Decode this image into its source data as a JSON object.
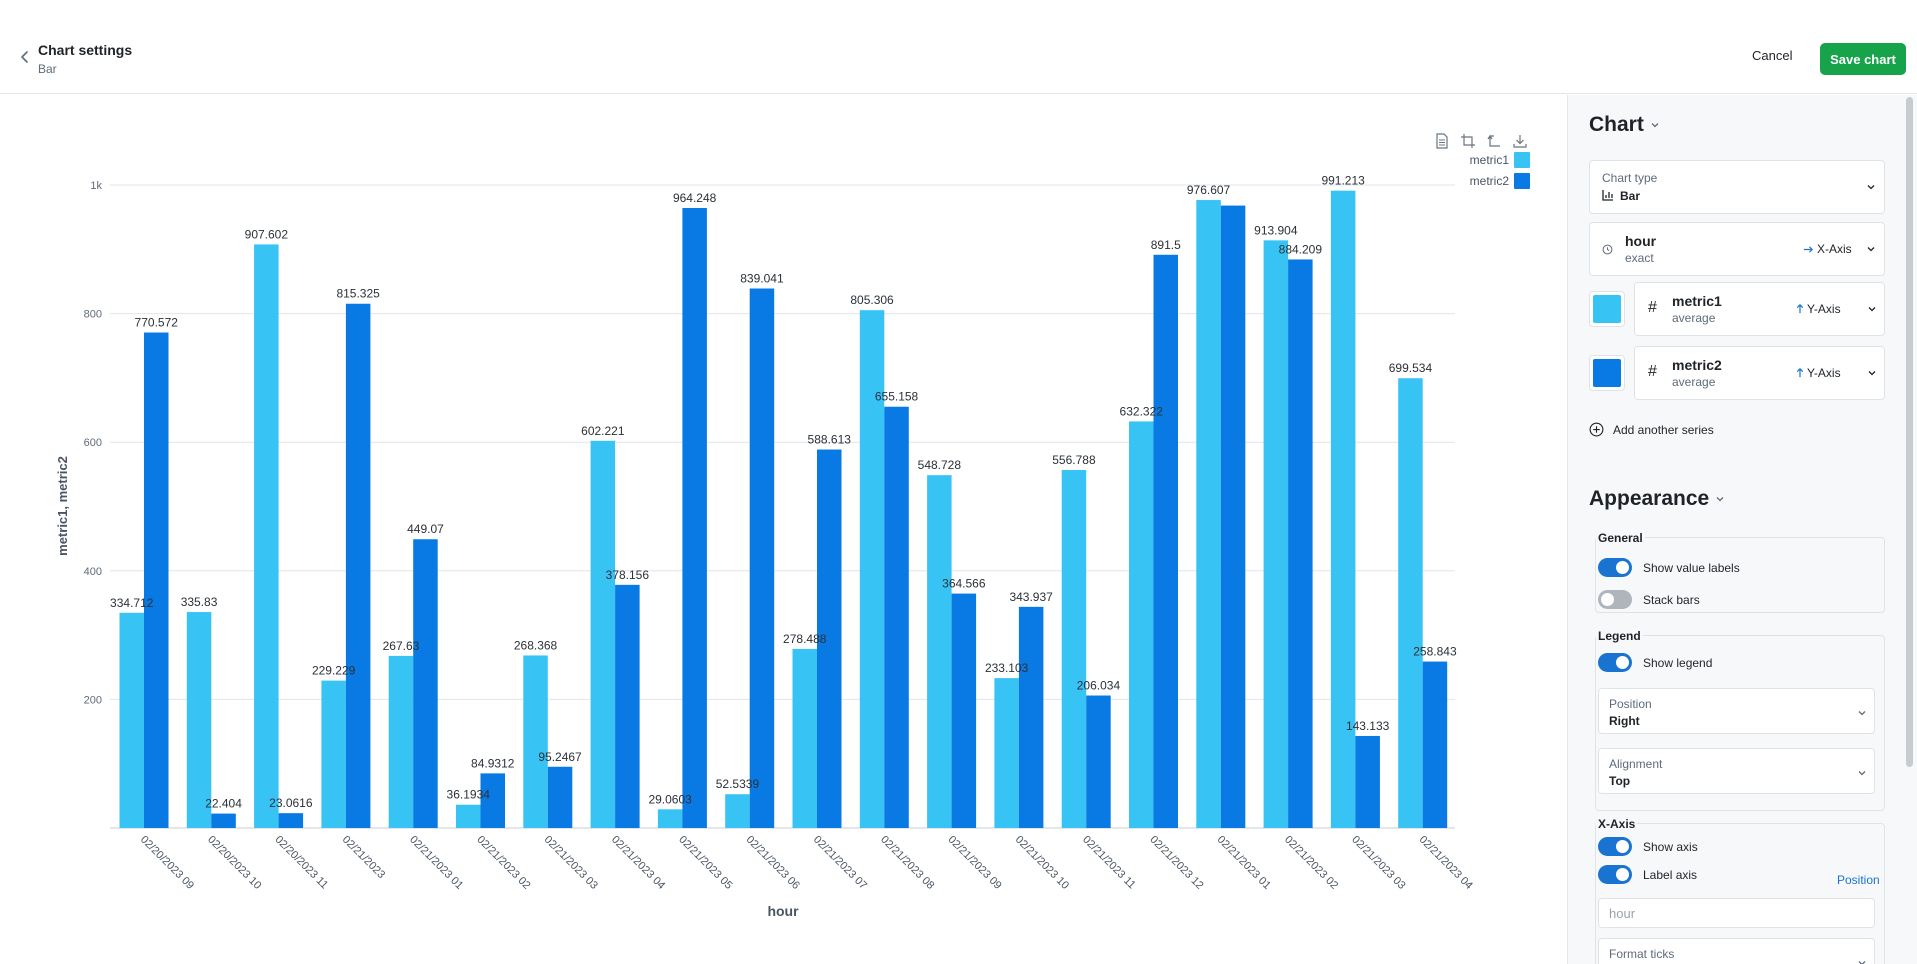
{
  "header": {
    "title": "Chart settings",
    "subtitle": "Bar",
    "cancel_label": "Cancel",
    "save_label": "Save chart"
  },
  "colors": {
    "metric1": "#38c3f5",
    "metric2": "#0979e3",
    "save_button": "#16a34a",
    "toggle_on": "#1874d0"
  },
  "chart_data": {
    "type": "bar",
    "categories": [
      "02/20/2023 09",
      "02/20/2023 10",
      "02/20/2023 11",
      "02/21/2023",
      "02/21/2023 01",
      "02/21/2023 02",
      "02/21/2023 03",
      "02/21/2023 04",
      "02/21/2023 05",
      "02/21/2023 06",
      "02/21/2023 07",
      "02/21/2023 08",
      "02/21/2023 09",
      "02/21/2023 10",
      "02/21/2023 11",
      "02/21/2023 12",
      "02/21/2023 01",
      "02/21/2023 02",
      "02/21/2023 03",
      "02/21/2023 04"
    ],
    "series": [
      {
        "name": "metric1",
        "color": "#38c3f5",
        "values": [
          334.712,
          335.83,
          907.602,
          229.229,
          267.63,
          36.1934,
          268.368,
          602.221,
          29.0603,
          52.5339,
          278.488,
          805.306,
          548.728,
          233.103,
          556.788,
          632.322,
          976.607,
          913.904,
          991.213,
          699.534
        ],
        "labels": [
          "334.712",
          "335.83",
          "907.602",
          "229.229",
          "267.63",
          "36.1934",
          "268.368",
          "602.221",
          "29.0603",
          "52.5339",
          "278.488",
          "805.306",
          "548.728",
          "233.103",
          "556.788",
          "632.322",
          "976.607",
          "913.904",
          "991.213",
          "699.534"
        ]
      },
      {
        "name": "metric2",
        "color": "#0979e3",
        "values": [
          770.572,
          22.404,
          23.0616,
          815.325,
          449.07,
          84.9312,
          95.2467,
          378.156,
          964.248,
          839.041,
          588.613,
          655.158,
          364.566,
          343.937,
          206.034,
          891.5,
          968.0,
          884.209,
          143.133,
          258.843
        ],
        "labels": [
          "770.572",
          "22.404",
          "23.0616",
          "815.325",
          "449.07",
          "84.9312",
          "95.2467",
          "378.156",
          "964.248",
          "839.041",
          "588.613",
          "655.158",
          "364.566",
          "343.937",
          "206.034",
          "891.5",
          "",
          "884.209",
          "143.133",
          "258.843"
        ]
      }
    ],
    "xlabel": "hour",
    "ylabel": "metric1, metric2",
    "ylim": [
      0,
      1000
    ],
    "yticks": [
      0,
      200,
      400,
      600,
      800,
      1000
    ],
    "ytick_labels": [
      "",
      "200",
      "400",
      "600",
      "800",
      "1k"
    ],
    "grid": true,
    "legend_position": "top-right",
    "value_labels": true,
    "stacked": false
  },
  "panel": {
    "chart_heading": "Chart",
    "chart_type": {
      "label": "Chart type",
      "value": "Bar"
    },
    "dimension": {
      "name": "hour",
      "sub": "exact",
      "axis": "X-Axis"
    },
    "metrics": [
      {
        "name": "metric1",
        "agg": "average",
        "axis": "Y-Axis",
        "color": "#38c3f5"
      },
      {
        "name": "metric2",
        "agg": "average",
        "axis": "Y-Axis",
        "color": "#0979e3"
      }
    ],
    "add_series": "Add another series",
    "appearance_heading": "Appearance",
    "general": {
      "label": "General",
      "show_value_labels": "Show value labels",
      "stack_bars": "Stack bars"
    },
    "legend": {
      "label": "Legend",
      "show_legend": "Show legend",
      "position": {
        "label": "Position",
        "value": "Right"
      },
      "alignment": {
        "label": "Alignment",
        "value": "Top"
      }
    },
    "xaxis": {
      "label": "X-Axis",
      "show_axis": "Show axis",
      "label_axis": "Label axis",
      "position_link": "Position",
      "label_placeholder": "hour",
      "format_ticks": "Format ticks"
    }
  }
}
